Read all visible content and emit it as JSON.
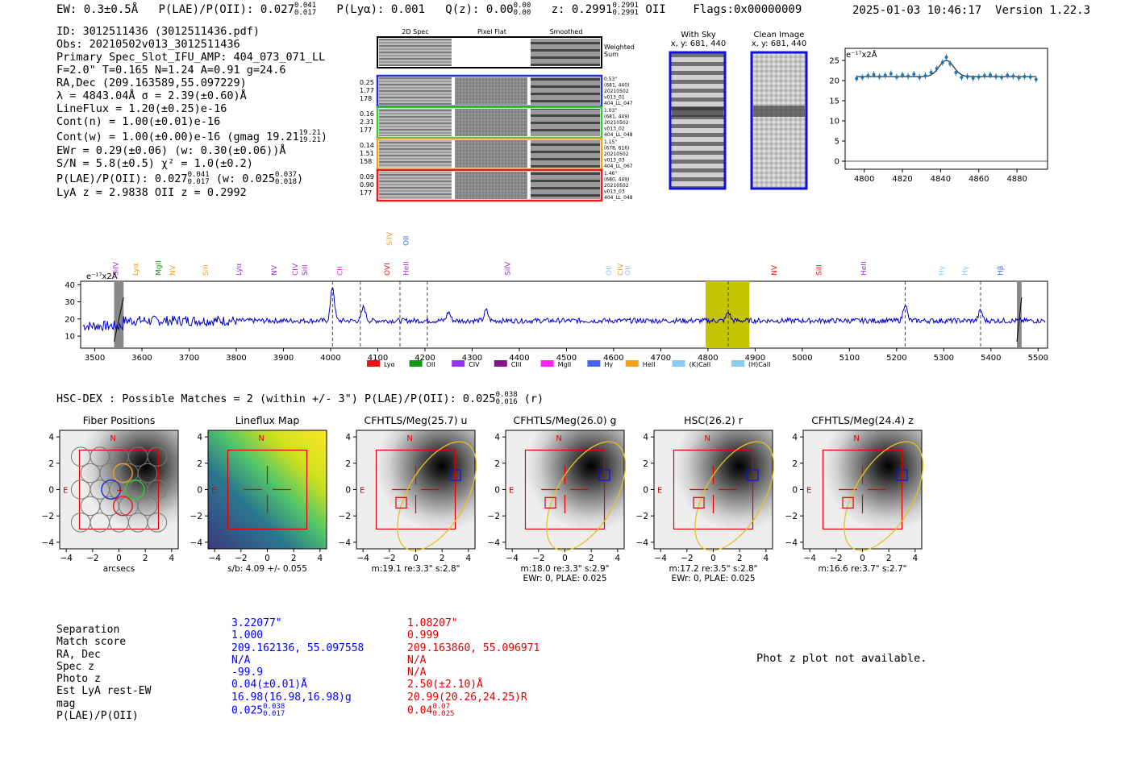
{
  "header": {
    "ew": "EW: 0.3±0.5Å",
    "plae": "P(LAE)/P(OII): 0.027",
    "plae_hi": "0.041",
    "plae_lo": "0.017",
    "plya": "P(Lyα): 0.001",
    "qz": "Q(z): 0.00",
    "qz_hi": "0.00",
    "qz_lo": "0.00",
    "z": "z: 0.2991",
    "z_hi": "0.2991",
    "z_lo": "0.2991",
    "z_line": "OII",
    "flags": "Flags:0x00000009",
    "datetime": "2025-01-03 10:46:17",
    "version": "Version 1.22.3"
  },
  "info": {
    "id": "ID: 3012511436 (3012511436.pdf)",
    "obs": "Obs: 20210502v013_3012511436",
    "primary": "Primary Spec_Slot_IFU_AMP: 404_073_071_LL",
    "fit": "F=2.0\"  T=0.165  N=1.24  A=0.91  g=24.6",
    "radec": "RA,Dec (209.163589,55.097229)",
    "lambda": "λ = 4843.04Å  σ = 2.39(±0.60)Å",
    "lineflux": "LineFlux = 1.20(±0.25)e-16",
    "contn": "Cont(n) = 1.00(±0.01)e-16",
    "contw": "Cont(w) = 1.00(±0.00)e-16 (gmag 19.21",
    "contw_hi": "19.21",
    "contw_lo": "19.21",
    "contw_end": ")",
    "ewr": "EWr = 0.29(±0.06) (w: 0.30(±0.06))Å",
    "sn": "S/N = 5.8(±0.5)  χ² = 1.0(±0.2)",
    "plae_a": "P(LAE)/P(OII): 0.027",
    "plae_a_hi": "0.041",
    "plae_a_lo": "0.017",
    "plae_b": "(w: 0.025",
    "plae_b_hi": "0.037",
    "plae_b_lo": "0.018",
    "plae_b_end": ")",
    "lya": "LyA z = 2.9838  OII z = 0.2992"
  },
  "cutouts": {
    "col_titles": [
      "2D Spec",
      "Pixel Flat",
      "Smoothed"
    ],
    "weighted_label": [
      "Weighted",
      "Sum"
    ],
    "rows": [
      {
        "nums": [
          "0.25",
          "1.77",
          "178"
        ],
        "meta": [
          "0.53\"",
          "(681, 440)",
          "20210502",
          "v013_01",
          "404_LL_047"
        ],
        "color": "#2233cc"
      },
      {
        "nums": [
          "0.16",
          "2.31",
          "177"
        ],
        "meta": [
          "1.03\"",
          "(681, 449)",
          "20210502",
          "v013_02",
          "404_LL_048"
        ],
        "color": "#33cc33"
      },
      {
        "nums": [
          "0.14",
          "1.51",
          "158"
        ],
        "meta": [
          "1.15\"",
          "(678, 616)",
          "20210502",
          "v013_03",
          "404_LL_067"
        ],
        "color": "#f0a020"
      },
      {
        "nums": [
          "0.09",
          "0.90",
          "177"
        ],
        "meta": [
          "1.46\"",
          "(680, 449)",
          "20210502",
          "v013_03",
          "404_LL_048"
        ],
        "color": "#e02020"
      }
    ]
  },
  "sky_panels": {
    "with_sky": [
      "With Sky",
      "x, y: 681, 440"
    ],
    "clean": [
      "Clean Image",
      "x, y: 681, 440"
    ]
  },
  "zoom_chart": {
    "ylabel": "e⁻¹⁷x2Å",
    "xticks": [
      "4800",
      "4820",
      "4840",
      "4860",
      "4880"
    ],
    "yticks": [
      "0",
      "5",
      "10",
      "15",
      "20",
      "25"
    ]
  },
  "chart_data": {
    "type": "line",
    "title": "",
    "ylabel": "e⁻¹⁷x2Å",
    "xlabel": "",
    "xlim": [
      3470,
      5520
    ],
    "ylim": [
      3,
      42
    ],
    "xticks": [
      3500,
      3600,
      3700,
      3800,
      3900,
      4000,
      4100,
      4200,
      4300,
      4400,
      4500,
      4600,
      4700,
      4800,
      4900,
      5000,
      5100,
      5200,
      5300,
      5400,
      5500
    ],
    "yticks": [
      10,
      20,
      30,
      40
    ],
    "baseline": 19,
    "emission_peaks": [
      [
        4004,
        39
      ],
      [
        4070,
        27
      ],
      [
        4250,
        24
      ],
      [
        4330,
        25
      ],
      [
        4843,
        24
      ],
      [
        5218,
        29
      ],
      [
        5378,
        25
      ]
    ],
    "dashed_lines": [
      4004,
      4063,
      4147,
      4205,
      4843,
      5218,
      5378
    ],
    "highlight_band": [
      4795,
      4888
    ],
    "masked_bands": [
      [
        3541,
        3561
      ],
      [
        5455,
        5465
      ]
    ],
    "line_labels": [
      {
        "label": "SiIV",
        "x": 3544,
        "color": "#9933cc"
      },
      {
        "label": "Lyα",
        "x": 3586,
        "color": "#f0a020"
      },
      {
        "label": "MgII",
        "x": 3635,
        "color": "#119911"
      },
      {
        "label": "NV",
        "x": 3665,
        "color": "#f0a020"
      },
      {
        "label": "SiII",
        "x": 3735,
        "color": "#f0a020"
      },
      {
        "label": "Lyα",
        "x": 3805,
        "color": "#9933cc"
      },
      {
        "label": "NV",
        "x": 3880,
        "color": "#9933cc"
      },
      {
        "label": "CIV",
        "x": 3925,
        "color": "#9933cc"
      },
      {
        "label": "SiII",
        "x": 3945,
        "color": "#9933cc"
      },
      {
        "label": "CII",
        "x": 4020,
        "color": "#ee22ee"
      },
      {
        "label": "OVI",
        "x": 4120,
        "color": "#ee1111"
      },
      {
        "label": "HeII",
        "x": 4160,
        "color": "#9933cc"
      },
      {
        "label": "SiIV",
        "x": 4375,
        "color": "#9933cc"
      },
      {
        "label": "OII",
        "x": 4590,
        "color": "#88ccee"
      },
      {
        "label": "CIV",
        "x": 4615,
        "color": "#f0a020"
      },
      {
        "label": "OII",
        "x": 4630,
        "color": "#88ccee"
      },
      {
        "label": "NV",
        "x": 4940,
        "color": "#ee1111"
      },
      {
        "label": "SiII",
        "x": 5035,
        "color": "#ee1111"
      },
      {
        "label": "HeII",
        "x": 5130,
        "color": "#9933cc"
      },
      {
        "label": "Hγ",
        "x": 5295,
        "color": "#88ccee"
      },
      {
        "label": "Hγ",
        "x": 5345,
        "color": "#88ccee"
      },
      {
        "label": "Hβ",
        "x": 5420,
        "color": "#4466ee"
      }
    ],
    "top_labels": [
      {
        "label": "SiIV",
        "x": 4125,
        "color": "#f0a020"
      },
      {
        "label": "OII",
        "x": 4160,
        "color": "#4466ee"
      }
    ],
    "legend": [
      {
        "label": "Lyα",
        "color": "#ee1111"
      },
      {
        "label": "OII",
        "color": "#119911"
      },
      {
        "label": "CIV",
        "color": "#9933ee"
      },
      {
        "label": "CIII",
        "color": "#881188"
      },
      {
        "label": "MgII",
        "color": "#ff22ff"
      },
      {
        "label": "Hγ",
        "color": "#4466ee"
      },
      {
        "label": "HeII",
        "color": "#f0a020"
      },
      {
        "label": "(K)CaII",
        "color": "#88ccee"
      },
      {
        "label": "(H)CaII",
        "color": "#88ccee"
      }
    ],
    "legend_position": "bottom-center",
    "zoom": {
      "x": [
        4796,
        4799,
        4802,
        4805,
        4808,
        4811,
        4814,
        4817,
        4820,
        4823,
        4826,
        4829,
        4832,
        4835,
        4838,
        4841,
        4843,
        4845,
        4848,
        4851,
        4854,
        4857,
        4860,
        4863,
        4866,
        4869,
        4872,
        4875,
        4878,
        4881,
        4884,
        4887,
        4890
      ],
      "y": [
        20.5,
        20.8,
        21.2,
        21.5,
        21.0,
        21.3,
        21.7,
        20.9,
        21.4,
        21.1,
        21.6,
        20.8,
        21.2,
        22.0,
        23.0,
        24.5,
        25.8,
        24.2,
        22.0,
        20.8,
        21.0,
        20.6,
        20.9,
        21.2,
        21.4,
        21.0,
        20.8,
        21.3,
        21.1,
        20.7,
        21.0,
        20.9,
        20.3
      ],
      "fit_center": 4843,
      "fit_sigma": 2.39,
      "fit_amp": 4,
      "fit_cont": 21,
      "xlim": [
        4790,
        4896
      ],
      "ylim": [
        -2,
        28
      ]
    }
  },
  "hsc": {
    "title": "HSC-DEX : Possible Matches = 2 (within +/- 3\")  P(LAE)/P(OII): 0.025",
    "hi": "0.038",
    "lo": "0.016",
    "band": "(r)"
  },
  "panels": [
    {
      "title": "Fiber Positions",
      "sub1": "arcsecs",
      "sub2": ""
    },
    {
      "title": "Lineflux Map",
      "sub1": "s/b: 4.09 +/- 0.055",
      "sub2": ""
    },
    {
      "title": "CFHTLS/Meg(25.7) u",
      "sub1": "m:19.1  re:3.3\"  s:2.8\"",
      "sub2": ""
    },
    {
      "title": "CFHTLS/Meg(26.0) g",
      "sub1": "m:18.0  re:3.3\"  s:2.9\"",
      "sub2": "EWr: 0, PLAE: 0.025"
    },
    {
      "title": "HSC(26.2) r",
      "sub1": "m:17.2  re:3.5\"  s:2.8\"",
      "sub2": "EWr: 0, PLAE: 0.025"
    },
    {
      "title": "CFHTLS/Meg(24.4) z",
      "sub1": "m:16.6  re:3.7\"  s:2.7\"",
      "sub2": ""
    }
  ],
  "panel_axis": {
    "ticks": [
      "−4",
      "−2",
      "0",
      "2",
      "4"
    ],
    "north": "N",
    "east": "E"
  },
  "match_table": {
    "labels": [
      "Separation",
      "Match score",
      "RA, Dec",
      "Spec z",
      "Photo z",
      "Est LyA rest-EW",
      "mag",
      "P(LAE)/P(OII)"
    ],
    "col1": [
      "3.22077\"",
      "1.000",
      "209.162136, 55.097558",
      "N/A",
      "-99.9",
      "0.04(±0.01)Å",
      "16.98(16.98,16.98)g",
      "0.025"
    ],
    "col1_plae_hi": "0.038",
    "col1_plae_lo": "0.017",
    "col2": [
      "1.08207\"",
      "0.999",
      "209.163860, 55.096971",
      "N/A",
      "N/A",
      "2.50(±2.10)Å",
      "20.99(20.26,24.25)R",
      "0.04"
    ],
    "col2_plae_hi": "0.07",
    "col2_plae_lo": "0.025"
  },
  "photz_note": "Phot z plot not available."
}
